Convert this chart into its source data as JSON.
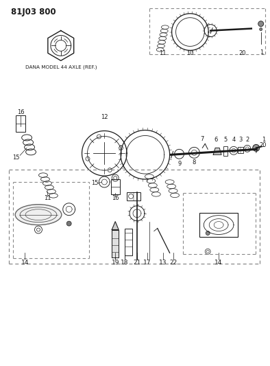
{
  "title": "81J03 800",
  "background_color": "#ffffff",
  "text_color": "#1a1a1a",
  "dana_label": "DANA MODEL 44 AXLE (REF.)",
  "figsize": [
    3.94,
    5.33
  ],
  "dpi": 100
}
